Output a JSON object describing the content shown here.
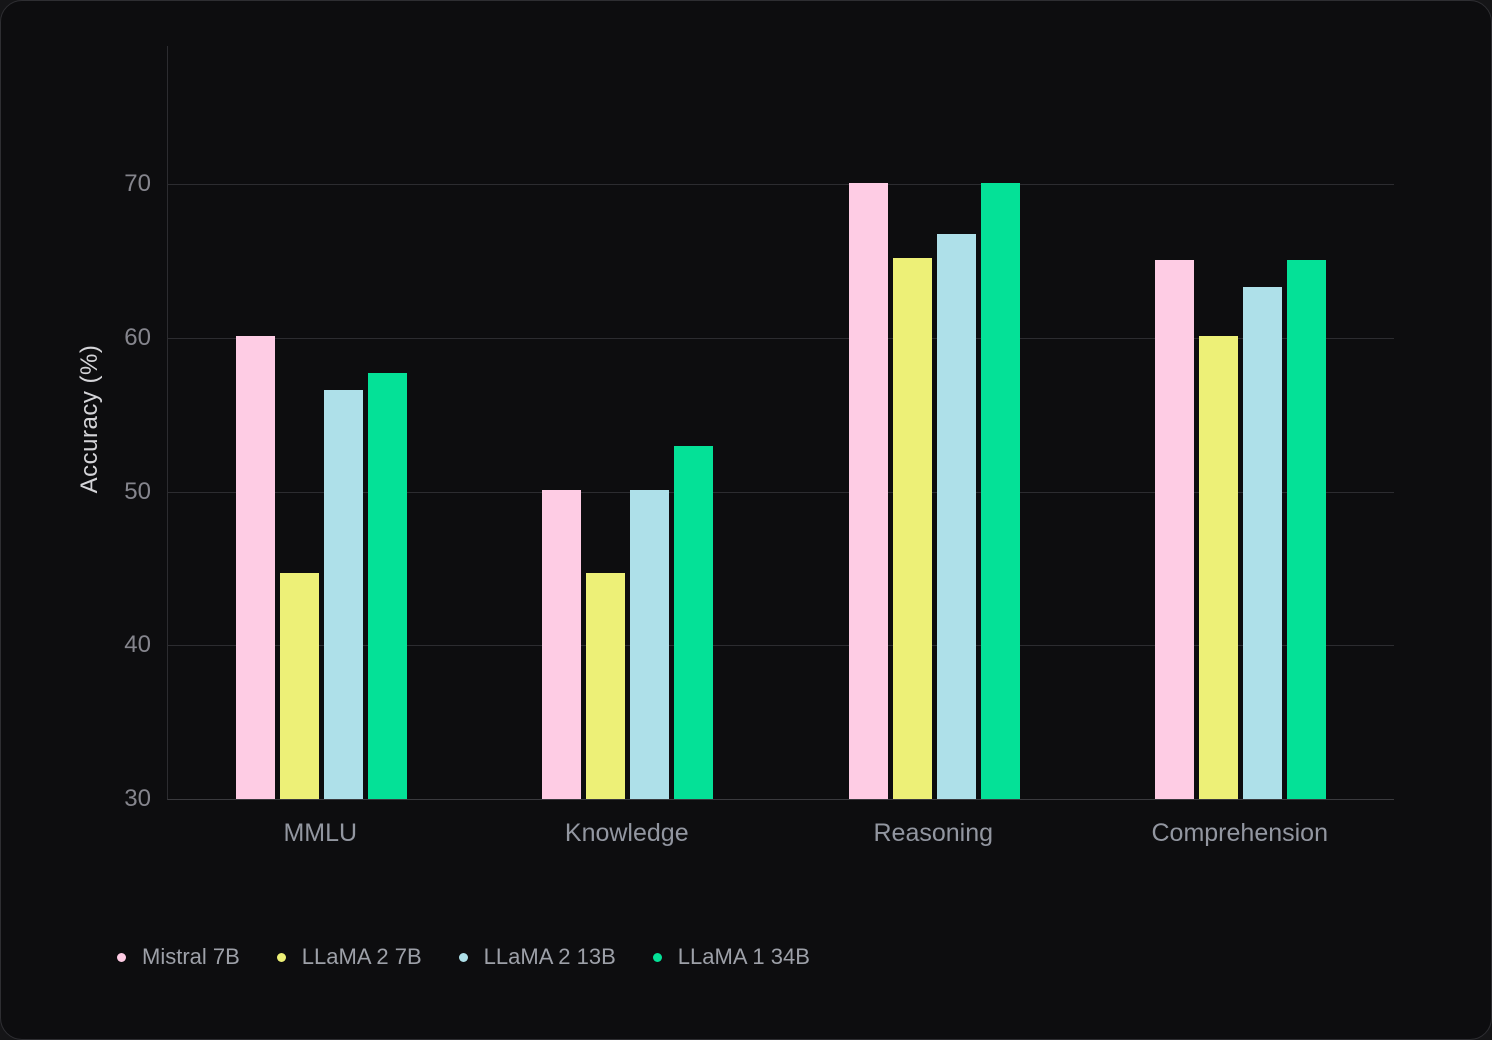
{
  "page": {
    "background": "#151517",
    "card_background": "#0d0d0f",
    "card_border": "#2e2e32"
  },
  "colors": {
    "grid_line": "#2c2c30",
    "axis_line": "#3a3a3e",
    "tick_text": "#85858d",
    "category_text": "#9296a0",
    "legend_text": "#9da0a8",
    "ylabel_text": "#d4d4d8"
  },
  "chart_data": {
    "type": "bar",
    "title": "",
    "xlabel": "",
    "ylabel": "Accuracy (%)",
    "categories": [
      "MMLU",
      "Knowledge",
      "Reasoning",
      "Comprehension"
    ],
    "series": [
      {
        "name": "Mistral 7B",
        "color": "#fecce4",
        "values": [
          60.1,
          50.1,
          70.1,
          65.1
        ]
      },
      {
        "name": "LLaMA 2 7B",
        "color": "#edf077",
        "values": [
          44.7,
          44.7,
          65.2,
          60.1
        ]
      },
      {
        "name": "LLaMA 2 13B",
        "color": "#aee0e9",
        "values": [
          56.6,
          50.1,
          66.8,
          63.3
        ]
      },
      {
        "name": "LLaMA 1 34B",
        "color": "#04e197",
        "values": [
          57.7,
          53.0,
          70.1,
          65.1
        ]
      }
    ],
    "ylim": [
      30,
      79
    ],
    "yticks": [
      30,
      40,
      50,
      60,
      70
    ],
    "grid": true,
    "legend_position": "bottom-left"
  }
}
